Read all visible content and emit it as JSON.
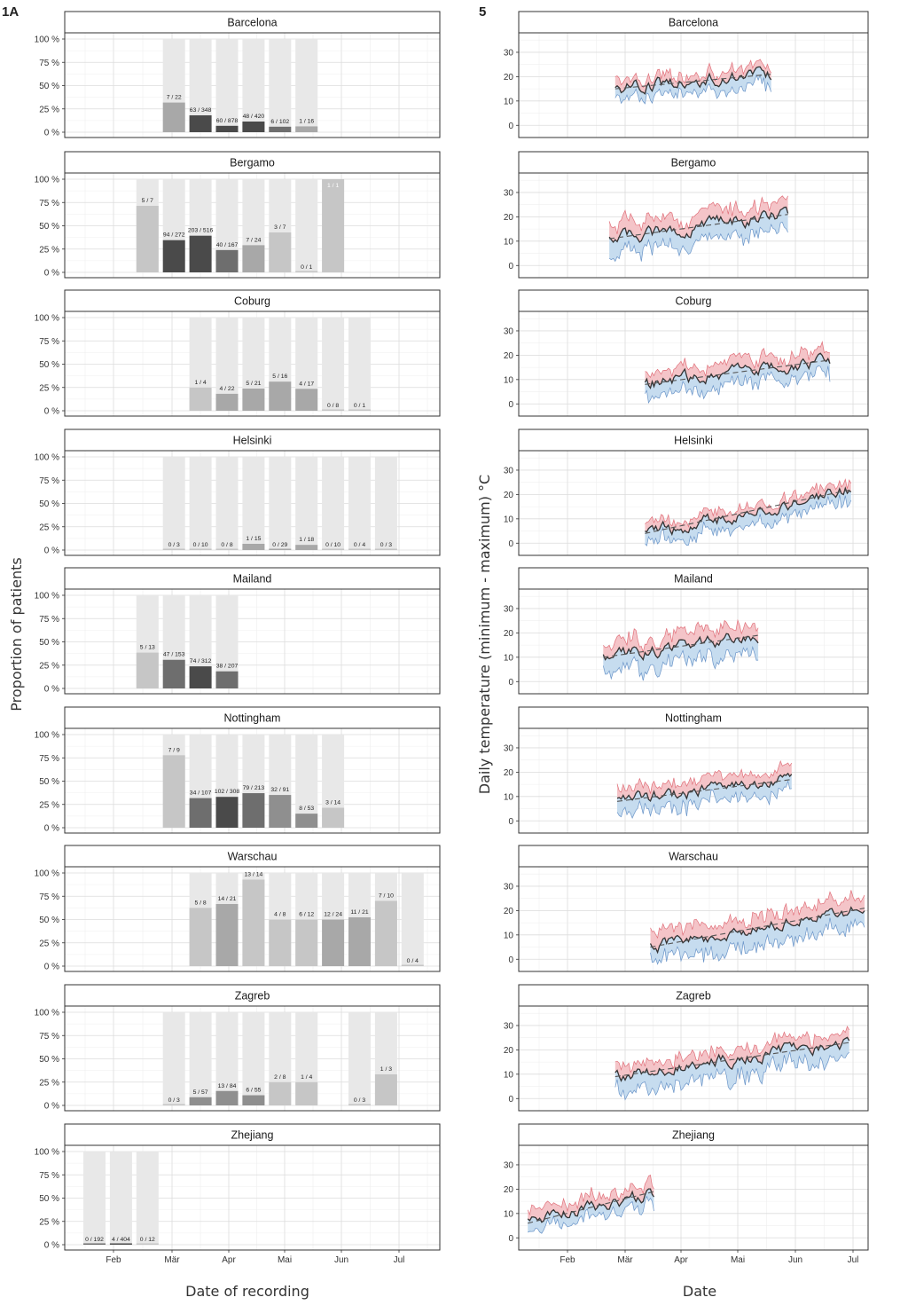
{
  "panel_a_letter": "1A",
  "panel_b_letter": "5",
  "chart_data": [
    {
      "type": "bar",
      "ylabel": "Proportion of patients",
      "xlabel": "Date of recording",
      "y_ticks": [
        "100 %",
        "75 %",
        "50 %",
        "25 %",
        "0 %"
      ],
      "x_ticks": [
        "Feb",
        "Mär",
        "Apr",
        "Mai",
        "Jun",
        "Jul"
      ],
      "ylim": [
        0,
        1
      ],
      "background_bar_color": "#e8e8e8",
      "panels": [
        {
          "city": "Barcelona",
          "bars": [
            {
              "week": 3,
              "n": 7,
              "d": 22,
              "label": "7 / 22"
            },
            {
              "week": 4,
              "n": 63,
              "d": 348,
              "label": "63 / 348"
            },
            {
              "week": 5,
              "n": 60,
              "d": 878,
              "label": "60 / 878"
            },
            {
              "week": 6,
              "n": 48,
              "d": 420,
              "label": "48 / 420"
            },
            {
              "week": 7,
              "n": 6,
              "d": 102,
              "label": "6 / 102"
            },
            {
              "week": 8,
              "n": 1,
              "d": 16,
              "label": "1 / 16"
            }
          ]
        },
        {
          "city": "Bergamo",
          "bars": [
            {
              "week": 2,
              "n": 5,
              "d": 7,
              "label": "5 / 7"
            },
            {
              "week": 3,
              "n": 94,
              "d": 272,
              "label": "94 / 272"
            },
            {
              "week": 4,
              "n": 203,
              "d": 516,
              "label": "203 / 516"
            },
            {
              "week": 5,
              "n": 40,
              "d": 167,
              "label": "40 / 167"
            },
            {
              "week": 6,
              "n": 7,
              "d": 24,
              "label": "7 / 24"
            },
            {
              "week": 7,
              "n": 3,
              "d": 7,
              "label": "3 / 7"
            },
            {
              "week": 8,
              "n": 0,
              "d": 1,
              "label": "0 / 1"
            },
            {
              "week": 9,
              "n": 1,
              "d": 1,
              "label": "1 / 1"
            }
          ]
        },
        {
          "city": "Coburg",
          "bars": [
            {
              "week": 4,
              "n": 1,
              "d": 4,
              "label": "1 / 4"
            },
            {
              "week": 5,
              "n": 4,
              "d": 22,
              "label": "4 / 22"
            },
            {
              "week": 6,
              "n": 5,
              "d": 21,
              "label": "5 / 21"
            },
            {
              "week": 7,
              "n": 5,
              "d": 16,
              "label": "5 / 16"
            },
            {
              "week": 8,
              "n": 4,
              "d": 17,
              "label": "4 / 17"
            },
            {
              "week": 9,
              "n": 0,
              "d": 8,
              "label": "0 / 8"
            },
            {
              "week": 10,
              "n": 0,
              "d": 1,
              "label": "0 / 1"
            }
          ]
        },
        {
          "city": "Helsinki",
          "bars": [
            {
              "week": 3,
              "n": 0,
              "d": 3,
              "label": "0 / 3"
            },
            {
              "week": 4,
              "n": 0,
              "d": 10,
              "label": "0 / 10"
            },
            {
              "week": 5,
              "n": 0,
              "d": 8,
              "label": "0 / 8"
            },
            {
              "week": 6,
              "n": 1,
              "d": 15,
              "label": "1 / 15"
            },
            {
              "week": 7,
              "n": 0,
              "d": 29,
              "label": "0 / 29"
            },
            {
              "week": 8,
              "n": 1,
              "d": 18,
              "label": "1 / 18"
            },
            {
              "week": 9,
              "n": 0,
              "d": 10,
              "label": "0 / 10"
            },
            {
              "week": 10,
              "n": 0,
              "d": 4,
              "label": "0 / 4"
            },
            {
              "week": 11,
              "n": 0,
              "d": 3,
              "label": "0 / 3"
            }
          ]
        },
        {
          "city": "Mailand",
          "bars": [
            {
              "week": 2,
              "n": 5,
              "d": 13,
              "label": "5 / 13"
            },
            {
              "week": 3,
              "n": 47,
              "d": 153,
              "label": "47 / 153"
            },
            {
              "week": 4,
              "n": 74,
              "d": 312,
              "label": "74 / 312"
            },
            {
              "week": 5,
              "n": 38,
              "d": 207,
              "label": "38 / 207"
            }
          ]
        },
        {
          "city": "Nottingham",
          "bars": [
            {
              "week": 3,
              "n": 7,
              "d": 9,
              "label": "7 / 9"
            },
            {
              "week": 4,
              "n": 34,
              "d": 107,
              "label": "34 / 107"
            },
            {
              "week": 5,
              "n": 102,
              "d": 308,
              "label": "102 / 308"
            },
            {
              "week": 6,
              "n": 79,
              "d": 213,
              "label": "79 / 213"
            },
            {
              "week": 7,
              "n": 32,
              "d": 91,
              "label": "32 / 91"
            },
            {
              "week": 8,
              "n": 8,
              "d": 53,
              "label": "8 / 53"
            },
            {
              "week": 9,
              "n": 3,
              "d": 14,
              "label": "3 / 14"
            }
          ]
        },
        {
          "city": "Warschau",
          "bars": [
            {
              "week": 4,
              "n": 5,
              "d": 8,
              "label": "5 / 8"
            },
            {
              "week": 5,
              "n": 14,
              "d": 21,
              "label": "14 / 21"
            },
            {
              "week": 6,
              "n": 13,
              "d": 14,
              "label": "13 / 14"
            },
            {
              "week": 7,
              "n": 4,
              "d": 8,
              "label": "4 / 8"
            },
            {
              "week": 8,
              "n": 6,
              "d": 12,
              "label": "6 / 12"
            },
            {
              "week": 9,
              "n": 12,
              "d": 24,
              "label": "12 / 24"
            },
            {
              "week": 10,
              "n": 11,
              "d": 21,
              "label": "11 / 21"
            },
            {
              "week": 11,
              "n": 7,
              "d": 10,
              "label": "7 / 10"
            },
            {
              "week": 12,
              "n": 0,
              "d": 4,
              "label": "0 / 4"
            }
          ]
        },
        {
          "city": "Zagreb",
          "bars": [
            {
              "week": 3,
              "n": 0,
              "d": 3,
              "label": "0 / 3"
            },
            {
              "week": 4,
              "n": 5,
              "d": 57,
              "label": "5 / 57"
            },
            {
              "week": 5,
              "n": 13,
              "d": 84,
              "label": "13 / 84"
            },
            {
              "week": 6,
              "n": 6,
              "d": 55,
              "label": "6 / 55"
            },
            {
              "week": 7,
              "n": 2,
              "d": 8,
              "label": "2 / 8"
            },
            {
              "week": 8,
              "n": 1,
              "d": 4,
              "label": "1 / 4"
            },
            {
              "week": 10,
              "n": 0,
              "d": 3,
              "label": "0 / 3"
            },
            {
              "week": 11,
              "n": 1,
              "d": 3,
              "label": "1 / 3"
            }
          ]
        },
        {
          "city": "Zhejiang",
          "bars": [
            {
              "week": 0,
              "n": 0,
              "d": 192,
              "label": "0 / 192"
            },
            {
              "week": 1,
              "n": 4,
              "d": 404,
              "label": "4 / 404"
            },
            {
              "week": 2,
              "n": 0,
              "d": 12,
              "label": "0 / 12"
            }
          ]
        }
      ]
    },
    {
      "type": "area",
      "ylabel": "Daily temperature (minimum - maximum) °C",
      "xlabel": "Date",
      "y_ticks": [
        "30",
        "20",
        "10",
        "0"
      ],
      "x_ticks": [
        "Feb",
        "Mär",
        "Apr",
        "Mai",
        "Jun",
        "Jul"
      ],
      "ylim": [
        -5,
        38
      ],
      "colors": {
        "max_band": "#f4c4c8",
        "max_line": "#e0707a",
        "min_band": "#c6dcef",
        "min_line": "#6a94c8",
        "mean_line": "#333333",
        "trend_line": "#555555"
      },
      "panels": [
        {
          "city": "Barcelona",
          "start_date": "2020-02-25",
          "end_date": "2020-05-19",
          "mean_start": 15,
          "mean_end": 21,
          "band_above": 3,
          "band_below": 4
        },
        {
          "city": "Bergamo",
          "start_date": "2020-02-22",
          "end_date": "2020-05-28",
          "mean_start": 11,
          "mean_end": 21,
          "band_above": 5,
          "band_below": 6
        },
        {
          "city": "Coburg",
          "start_date": "2020-03-12",
          "end_date": "2020-06-19",
          "mean_start": 8,
          "mean_end": 18,
          "band_above": 4,
          "band_below": 5
        },
        {
          "city": "Helsinki",
          "start_date": "2020-03-12",
          "end_date": "2020-06-30",
          "mean_start": 4,
          "mean_end": 22,
          "band_above": 3,
          "band_below": 4
        },
        {
          "city": "Mailand",
          "start_date": "2020-02-19",
          "end_date": "2020-05-12",
          "mean_start": 10,
          "mean_end": 19,
          "band_above": 5,
          "band_below": 6
        },
        {
          "city": "Nottingham",
          "start_date": "2020-02-26",
          "end_date": "2020-05-30",
          "mean_start": 8,
          "mean_end": 17,
          "band_above": 4,
          "band_below": 5
        },
        {
          "city": "Warschau",
          "start_date": "2020-03-15",
          "end_date": "2020-07-07",
          "mean_start": 5,
          "mean_end": 21,
          "band_above": 5,
          "band_below": 6
        },
        {
          "city": "Zagreb",
          "start_date": "2020-02-25",
          "end_date": "2020-06-29",
          "mean_start": 9,
          "mean_end": 23,
          "band_above": 4,
          "band_below": 6
        },
        {
          "city": "Zhejiang",
          "start_date": "2020-01-12",
          "end_date": "2020-03-17",
          "mean_start": 6,
          "mean_end": 19,
          "band_above": 4,
          "band_below": 4
        }
      ]
    }
  ]
}
